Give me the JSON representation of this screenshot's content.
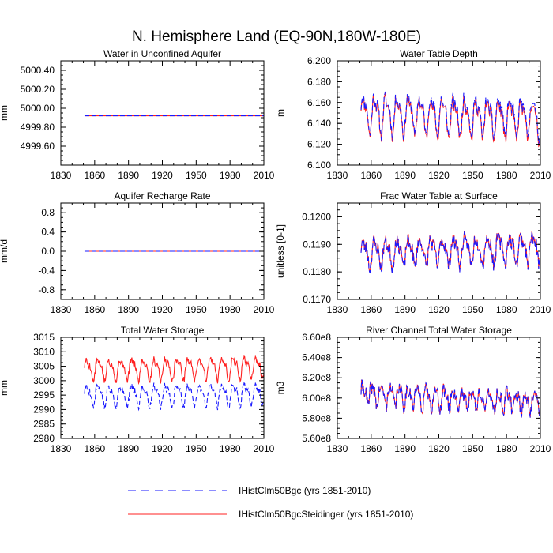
{
  "figure": {
    "title": "N. Hemisphere Land (EQ-90N,180W-180E)"
  },
  "legend": [
    {
      "label": "IHistClm50Bgc (yrs 1851-2010)",
      "color": "#1a1aff",
      "dash": true
    },
    {
      "label": "IHistClm50BgcSteidinger (yrs 1851-2010)",
      "color": "#ff2020",
      "dash": false
    }
  ],
  "chart_data": [
    {
      "type": "line",
      "title": "Water in Unconfined Aquifer",
      "ylabel": "mm",
      "xlim": [
        1830,
        2010
      ],
      "ylim": [
        4999.4,
        5000.5
      ],
      "xticks": [
        "1830",
        "1860",
        "1890",
        "1920",
        "1950",
        "1980",
        "2010"
      ],
      "yticks": [
        "4999.60",
        "4999.80",
        "5000.00",
        "5000.20",
        "5000.40"
      ],
      "series": [
        {
          "color": "#ff2020",
          "dash": false,
          "x_start": 1851,
          "x_end": 2010,
          "constant": 4999.92
        },
        {
          "color": "#1a1aff",
          "dash": true,
          "x_start": 1851,
          "x_end": 2010,
          "constant": 4999.92
        }
      ]
    },
    {
      "type": "line",
      "title": "Water Table Depth",
      "ylabel": "m",
      "xlim": [
        1830,
        2010
      ],
      "ylim": [
        6.1,
        6.2
      ],
      "xticks": [
        "1830",
        "1860",
        "1890",
        "1920",
        "1950",
        "1980",
        "2010"
      ],
      "yticks": [
        "6.100",
        "6.120",
        "6.140",
        "6.160",
        "6.180",
        "6.200"
      ],
      "series": [
        {
          "color": "#ff2020",
          "dash": false,
          "x_start": 1851,
          "x_end": 2010,
          "base": 6.15,
          "amp": 0.022,
          "period": 10,
          "noise": 0.006,
          "seed": 11,
          "trend": -0.006
        },
        {
          "color": "#1a1aff",
          "dash": true,
          "x_start": 1851,
          "x_end": 2010,
          "base": 6.151,
          "amp": 0.022,
          "period": 10,
          "noise": 0.006,
          "seed": 11,
          "trend": -0.004
        }
      ]
    },
    {
      "type": "line",
      "title": "Aquifer Recharge Rate",
      "ylabel": "mm/d",
      "xlim": [
        1830,
        2010
      ],
      "ylim": [
        -1.0,
        1.0
      ],
      "xticks": [
        "1830",
        "1860",
        "1890",
        "1920",
        "1950",
        "1980",
        "2010"
      ],
      "yticks": [
        "-0.8",
        "-0.4",
        "0.0",
        "0.4",
        "0.8"
      ],
      "series": [
        {
          "color": "#ff2020",
          "dash": false,
          "x_start": 1851,
          "x_end": 2010,
          "constant": 0.0
        },
        {
          "color": "#1a1aff",
          "dash": true,
          "x_start": 1851,
          "x_end": 2010,
          "constant": 0.0
        }
      ]
    },
    {
      "type": "line",
      "title": "Frac Water Table at Surface",
      "ylabel": "unitless [0-1]",
      "xlim": [
        1830,
        2010
      ],
      "ylim": [
        0.117,
        0.1205
      ],
      "xticks": [
        "1830",
        "1860",
        "1890",
        "1920",
        "1950",
        "1980",
        "2010"
      ],
      "yticks": [
        "0.1170",
        "0.1180",
        "0.1190",
        "0.1200"
      ],
      "series": [
        {
          "color": "#ff2020",
          "dash": false,
          "x_start": 1851,
          "x_end": 2010,
          "base": 0.1187,
          "amp": 0.0006,
          "period": 10,
          "noise": 0.00025,
          "seed": 23,
          "trend": 0.0002
        },
        {
          "color": "#1a1aff",
          "dash": true,
          "x_start": 1851,
          "x_end": 2010,
          "base": 0.11868,
          "amp": 0.0006,
          "period": 10,
          "noise": 0.00025,
          "seed": 23,
          "trend": 0.0002
        }
      ]
    },
    {
      "type": "line",
      "title": "Total Water Storage",
      "ylabel": "mm",
      "xlim": [
        1830,
        2010
      ],
      "ylim": [
        2980,
        3015
      ],
      "xticks": [
        "1830",
        "1860",
        "1890",
        "1920",
        "1950",
        "1980",
        "2010"
      ],
      "yticks": [
        "2980",
        "2985",
        "2990",
        "2995",
        "3000",
        "3005",
        "3010",
        "3015"
      ],
      "series": [
        {
          "color": "#ff2020",
          "dash": false,
          "x_start": 1851,
          "x_end": 2010,
          "base": 3004,
          "amp": 4.5,
          "period": 10,
          "noise": 1.2,
          "seed": 5,
          "trend": 0.8
        },
        {
          "color": "#1a1aff",
          "dash": true,
          "x_start": 1851,
          "x_end": 2010,
          "base": 2995,
          "amp": 4.5,
          "period": 10,
          "noise": 1.2,
          "seed": 5,
          "trend": 0.5
        }
      ]
    },
    {
      "type": "line",
      "title": "River Channel Total Water Storage",
      "ylabel": "m3",
      "xlim": [
        1830,
        2010
      ],
      "ylim": [
        560000000,
        660000000
      ],
      "xticks": [
        "1830",
        "1860",
        "1890",
        "1920",
        "1950",
        "1980",
        "2010"
      ],
      "yticks": [
        "5.60e8",
        "5.80e8",
        "6.00e8",
        "6.20e8",
        "6.40e8",
        "6.60e8"
      ],
      "series": [
        {
          "color": "#ff2020",
          "dash": false,
          "x_start": 1851,
          "x_end": 2010,
          "base": 604000000,
          "amp": 12000000,
          "period": 8,
          "noise": 7000000,
          "seed": 41,
          "trend": -8000000
        },
        {
          "color": "#1a1aff",
          "dash": true,
          "x_start": 1851,
          "x_end": 2010,
          "base": 604000000,
          "amp": 12000000,
          "period": 8,
          "noise": 7000000,
          "seed": 41,
          "trend": -8000000
        }
      ]
    }
  ]
}
